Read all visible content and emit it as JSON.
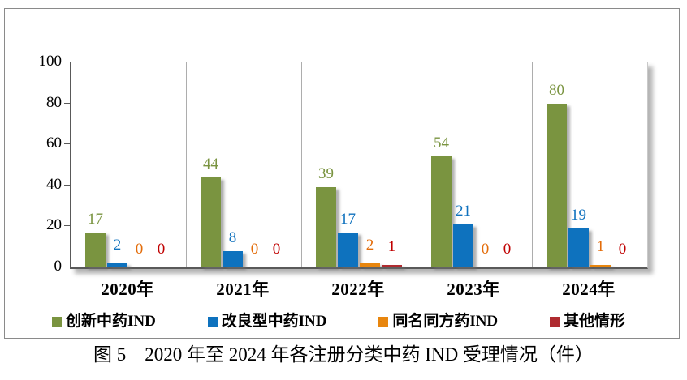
{
  "chart_data": {
    "type": "bar",
    "title": "",
    "xlabel": "",
    "ylabel": "",
    "categories": [
      "2020年",
      "2021年",
      "2022年",
      "2023年",
      "2024年"
    ],
    "series": [
      {
        "name": "创新中药IND",
        "color": "#7A9440",
        "label_color": "#7A9440",
        "values": [
          17,
          44,
          39,
          54,
          80
        ]
      },
      {
        "name": "改良型中药IND",
        "color": "#0E72BE",
        "label_color": "#1072BE",
        "values": [
          2,
          8,
          17,
          21,
          19
        ]
      },
      {
        "name": "同名同方药IND",
        "color": "#E8860E",
        "label_color": "#E36C09",
        "values": [
          0,
          0,
          2,
          0,
          1
        ]
      },
      {
        "name": "其他情形",
        "color": "#AF2B30",
        "label_color": "#C00000",
        "values": [
          0,
          0,
          1,
          0,
          0
        ]
      }
    ],
    "ylim": [
      0,
      100
    ],
    "yticks": [
      100,
      80,
      60,
      40,
      20,
      0
    ],
    "grid": "vertical category dividers only",
    "legend_position": "bottom"
  },
  "caption": "图 5　2020 年至 2024 年各注册分类中药 IND 受理情况（件）",
  "colors": {
    "outer_border": "#8a8a8a",
    "axis_line": "#595959",
    "divider_line": "#adadad",
    "shadow": "#b5b5b5"
  }
}
